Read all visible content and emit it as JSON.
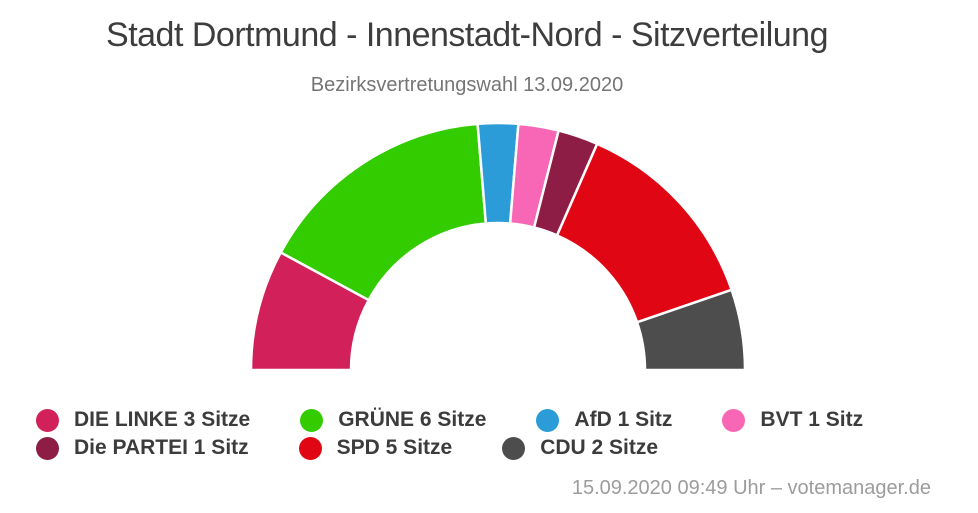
{
  "header": {
    "title": "Stadt Dortmund - Innenstadt-Nord - Sitzverteilung",
    "subtitle": "Bezirksvertretungswahl 13.09.2020"
  },
  "footer": {
    "credit": "15.09.2020 09:49 Uhr – votemanager.de"
  },
  "chart_data": {
    "type": "pie",
    "variant": "semi-donut",
    "title": "Stadt Dortmund - Innenstadt-Nord - Sitzverteilung",
    "subtitle": "Bezirksvertretungswahl 13.09.2020",
    "total_seats": 19,
    "angle_span_degrees": 180,
    "legend_position": "bottom-left",
    "legend_wrap_after": 4,
    "geometry": {
      "cx": 498,
      "cy": 370,
      "outer_radius": 247,
      "inner_radius": 147,
      "gap_stroke_color": "#ffffff",
      "gap_stroke_width": 2.5
    },
    "series": [
      {
        "name": "DIE LINKE",
        "seats": 3,
        "color": "#d2215a",
        "legend_label": "DIE LINKE 3 Sitze"
      },
      {
        "name": "GRÜNE",
        "seats": 6,
        "color": "#33cc00",
        "legend_label": "GRÜNE 6 Sitze"
      },
      {
        "name": "AfD",
        "seats": 1,
        "color": "#2b9cd8",
        "legend_label": "AfD 1 Sitz"
      },
      {
        "name": "BVT",
        "seats": 1,
        "color": "#f767b5",
        "legend_label": "BVT 1 Sitz"
      },
      {
        "name": "Die PARTEI",
        "seats": 1,
        "color": "#8e1d45",
        "legend_label": "Die PARTEI 1 Sitz"
      },
      {
        "name": "SPD",
        "seats": 5,
        "color": "#e10613",
        "legend_label": "SPD 5 Sitze"
      },
      {
        "name": "CDU",
        "seats": 2,
        "color": "#4d4d4d",
        "legend_label": "CDU 2 Sitze"
      }
    ]
  }
}
